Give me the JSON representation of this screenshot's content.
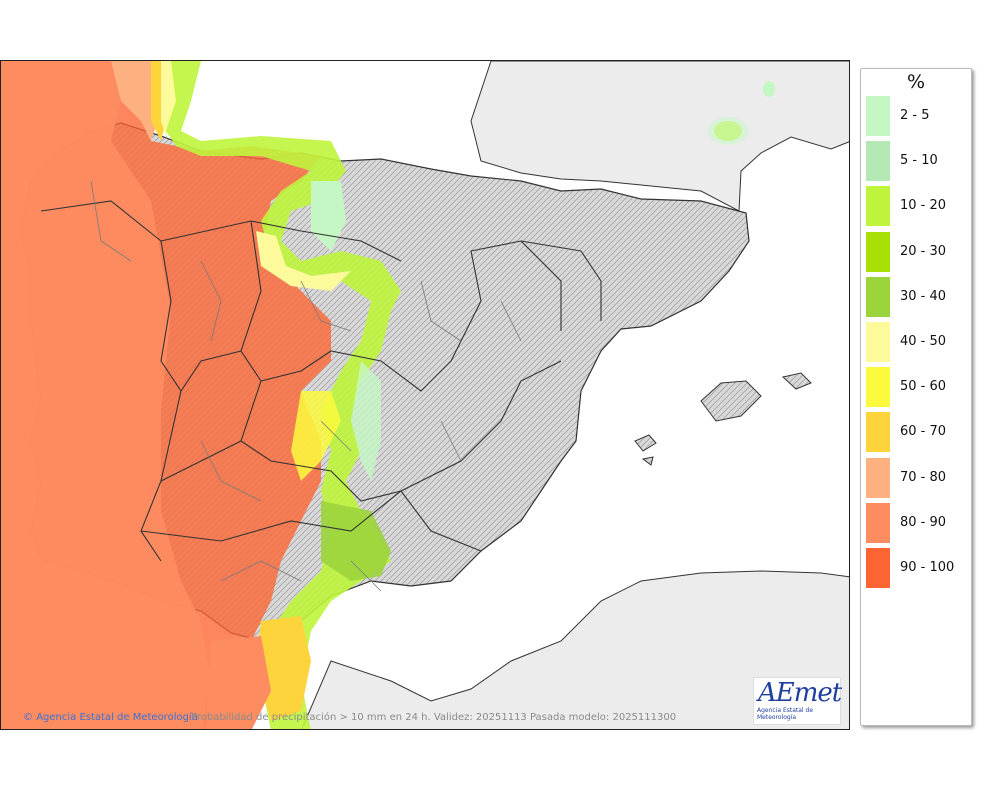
{
  "legend": {
    "title": "%",
    "classes": [
      {
        "label": "2 - 5",
        "color": "#c4f7c4"
      },
      {
        "label": "5 - 10",
        "color": "#b4e8b4"
      },
      {
        "label": "10 - 20",
        "color": "#bff43c"
      },
      {
        "label": "20 - 30",
        "color": "#a8e005"
      },
      {
        "label": "30 - 40",
        "color": "#9cd43c"
      },
      {
        "label": "40 - 50",
        "color": "#fdfa9c"
      },
      {
        "label": "50 - 60",
        "color": "#fcfa3c"
      },
      {
        "label": "60 - 70",
        "color": "#fdd43c"
      },
      {
        "label": "70 - 80",
        "color": "#fdb080"
      },
      {
        "label": "80 - 90",
        "color": "#fd8c60"
      },
      {
        "label": "90 - 100",
        "color": "#fc6432"
      }
    ]
  },
  "footer": {
    "credit": "Agencia Estatal de Meteorología",
    "caption": "Probabilidad de precipitación > 10 mm en 24 h. Validez: 20251113 Pasada modelo: 2025111300"
  },
  "logo": {
    "text": "AEmet",
    "subtitle": "Agencia Estatal de Meteorología"
  },
  "colors": {
    "sea": "#ffffff",
    "land_outside": "#ececec",
    "land_relief": "#dcdcdc"
  }
}
